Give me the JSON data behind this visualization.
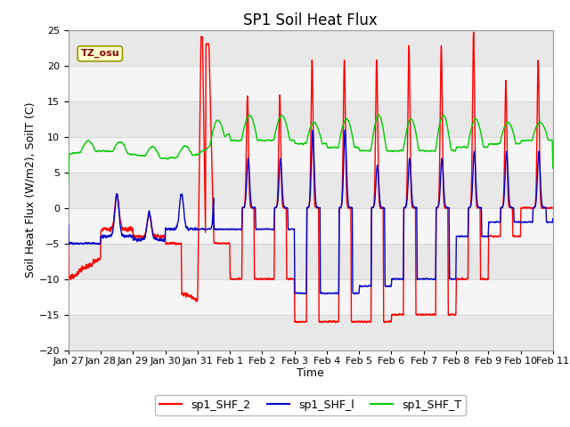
{
  "title": "SP1 Soil Heat Flux",
  "ylabel": "Soil Heat Flux (W/m2), SoilT (C)",
  "xlabel": "Time",
  "ylim": [
    -20,
    25
  ],
  "yticks": [
    -20,
    -15,
    -10,
    -5,
    0,
    5,
    10,
    15,
    20,
    25
  ],
  "xtick_labels": [
    "Jan 27",
    "Jan 28",
    "Jan 29",
    "Jan 30",
    "Jan 31",
    "Feb 1",
    "Feb 2",
    "Feb 3",
    "Feb 4",
    "Feb 5",
    "Feb 6",
    "Feb 7",
    "Feb 8",
    "Feb 9",
    "Feb 10",
    "Feb 11"
  ],
  "colors": {
    "sp1_SHF_2": "#ff0000",
    "sp1_SHF_1": "#0000cc",
    "sp1_SHF_T": "#00cc00"
  },
  "legend_labels": [
    "sp1_SHF_2",
    "sp1_SHF_l",
    "sp1_SHF_T"
  ],
  "timezone_label": "TZ_osu",
  "title_fontsize": 12,
  "axis_fontsize": 9,
  "tick_fontsize": 8,
  "band_colors": [
    "#e8e8e8",
    "#f5f5f5"
  ]
}
